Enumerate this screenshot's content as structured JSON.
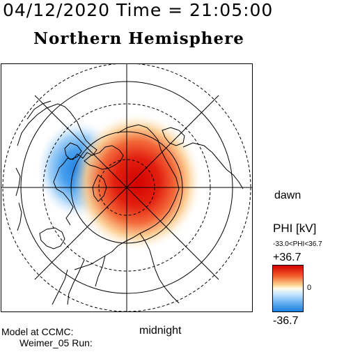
{
  "header": {
    "datetime": "04/12/2020 Time = 21:05:00",
    "hemisphere_title": "Northern Hemisphere"
  },
  "map": {
    "labels": {
      "right_side": "dawn",
      "bottom_side": "midnight"
    },
    "potential_cells": [
      {
        "sign": "positive",
        "color": "#d40000"
      },
      {
        "sign": "negative",
        "color": "#1c7ee0"
      }
    ]
  },
  "colorbar": {
    "title": "PHI [kV]",
    "range_text": "-33.0<PHI<36.7",
    "max_label": "+36.7",
    "zero_label": "0",
    "min_label": "-36.7",
    "max_color": "#d40000",
    "mid_color": "#fffbe8",
    "min_color": "#1c7ee0"
  },
  "footer": {
    "model_line": "Model at CCMC:",
    "run_line": "Weimer_05 Run:"
  }
}
